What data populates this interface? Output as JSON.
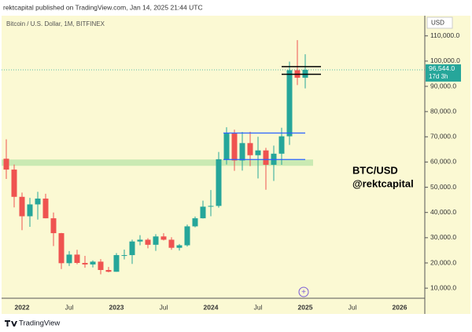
{
  "chart_data": {
    "type": "candlestick",
    "header": "rektcapital published on TradingView.com, Jan 14, 2025 21:44 UTC",
    "title": "Bitcoin / U.S. Dollar, 1M, BITFINEX",
    "currency": "USD",
    "annotations": [
      "BTC/USD",
      "@rektcapital"
    ],
    "footer": "TradingView",
    "categories": [
      null,
      null,
      "2022",
      null,
      null,
      null,
      null,
      null,
      "Jul",
      null,
      null,
      null,
      null,
      null,
      "2023",
      null,
      null,
      null,
      null,
      null,
      "Jul",
      null,
      null,
      null,
      null,
      null,
      "2024",
      null,
      null,
      null,
      null,
      null,
      "Jul",
      null,
      null,
      null,
      null,
      null,
      "2025",
      null,
      null,
      null,
      null,
      null,
      "Jul",
      null,
      null,
      null,
      null,
      null,
      "2026",
      null,
      null,
      null
    ],
    "open": [
      61300,
      57000,
      46200,
      38500,
      43200,
      45500,
      37700,
      31800,
      19900,
      23300,
      20000,
      19400,
      20500,
      17200,
      16500,
      23100,
      23100,
      28500,
      29200,
      27200,
      30500,
      29200,
      26000,
      27000,
      34500,
      37700,
      42300,
      42600,
      61100,
      71300,
      60600,
      67500,
      62700,
      64600,
      58900,
      63300,
      70200,
      96400,
      93400,
      null,
      null,
      null,
      null,
      null,
      null,
      null,
      null,
      null,
      null,
      null,
      null,
      null,
      null,
      null
    ],
    "high": [
      69000,
      59000,
      47900,
      45800,
      48200,
      47400,
      40000,
      31900,
      24700,
      25200,
      22800,
      21000,
      21500,
      18400,
      23900,
      25300,
      29200,
      31000,
      29800,
      31400,
      31800,
      30200,
      27500,
      35200,
      38400,
      44700,
      48900,
      64000,
      73800,
      72800,
      71900,
      72000,
      70000,
      65600,
      66500,
      73600,
      99800,
      108300,
      102700,
      null,
      null,
      null,
      null,
      null,
      null,
      null,
      null,
      null,
      null,
      null,
      null,
      null,
      null,
      null
    ],
    "low": [
      53300,
      42000,
      33000,
      34300,
      37200,
      37700,
      26700,
      17600,
      18800,
      19500,
      18100,
      18200,
      15500,
      16300,
      16500,
      21400,
      19600,
      27000,
      25800,
      24800,
      28900,
      25200,
      24900,
      26500,
      34100,
      37600,
      38500,
      41900,
      59000,
      56500,
      56600,
      58400,
      53500,
      49000,
      52500,
      58900,
      66800,
      90500,
      89200,
      null,
      null,
      null,
      null,
      null,
      null,
      null,
      null,
      null,
      null,
      null,
      null,
      null,
      null,
      null
    ],
    "close": [
      57000,
      46200,
      38500,
      43200,
      45500,
      37700,
      31800,
      19900,
      23300,
      20000,
      19400,
      20500,
      17200,
      16500,
      23100,
      23100,
      28500,
      29200,
      27200,
      30500,
      29200,
      26000,
      27000,
      34500,
      37700,
      42300,
      42600,
      61100,
      71300,
      60600,
      67500,
      62700,
      64600,
      58900,
      63300,
      70200,
      96400,
      93400,
      96544,
      null,
      null,
      null,
      null,
      null,
      null,
      null,
      null,
      null,
      null,
      null,
      null,
      null,
      null,
      null
    ],
    "up_color": "#26a69a",
    "down_color": "#ef5350",
    "ylim": [
      6000,
      118000
    ],
    "yticks": [
      {
        "value": 10000,
        "label": "10,000.0"
      },
      {
        "value": 20000,
        "label": "20,000.0"
      },
      {
        "value": 30000,
        "label": "30,000.0"
      },
      {
        "value": 40000,
        "label": "40,000.0"
      },
      {
        "value": 50000,
        "label": "50,000.0"
      },
      {
        "value": 60000,
        "label": "60,000.0"
      },
      {
        "value": 70000,
        "label": "70,000.0"
      },
      {
        "value": 80000,
        "label": "80,000.0"
      },
      {
        "value": 90000,
        "label": "90,000.0"
      },
      {
        "value": 100000,
        "label": "100,000.0"
      },
      {
        "value": 110000,
        "label": "110,000.0"
      }
    ],
    "last_price": {
      "value": 96544,
      "label": "96,544.0"
    },
    "countdown": "17d 3h",
    "support_zone": [
      58500,
      61000
    ],
    "range_lines": [
      71500,
      61000
    ],
    "box_lines": [
      97800,
      94800
    ]
  }
}
